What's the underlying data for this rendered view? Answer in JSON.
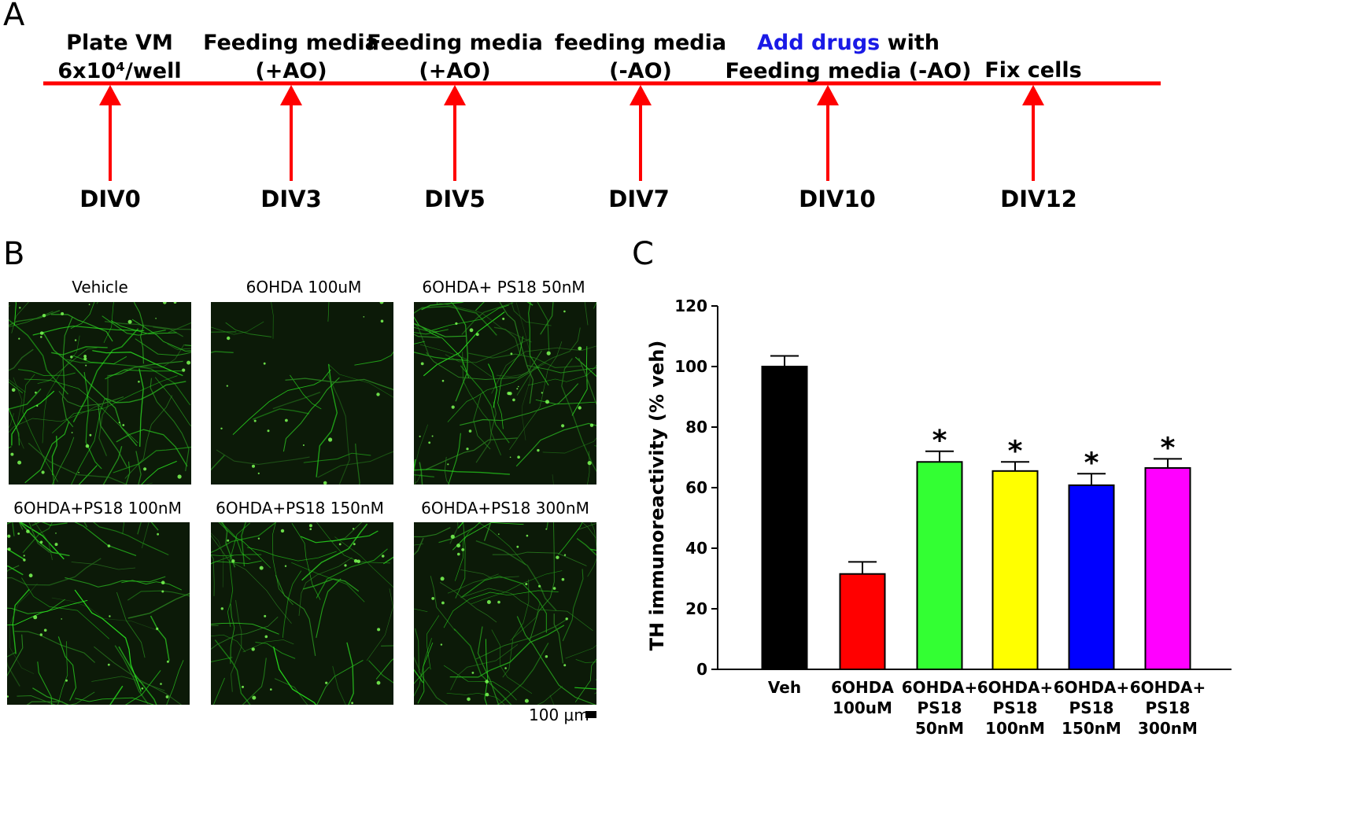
{
  "panel_a": {
    "letter": "A",
    "events": [
      {
        "lines": [
          "Plate VM",
          "6x10⁴/well"
        ],
        "day": "DIV0"
      },
      {
        "lines": [
          "Feeding media",
          "(+AO)"
        ],
        "day": "DIV3"
      },
      {
        "lines": [
          "Feeding media",
          "(+AO)"
        ],
        "day": "DIV5"
      },
      {
        "lines": [
          "feeding media",
          "(-AO)"
        ],
        "day": "DIV7"
      },
      {
        "accent": "Add drugs",
        "rest": " with",
        "line2": "Feeding media (-AO)",
        "day": "DIV10"
      },
      {
        "lines": [
          "Fix cells"
        ],
        "day": "DIV12"
      }
    ],
    "line_color": "#ff0000",
    "accent_color": "#1a1ae6"
  },
  "panel_b": {
    "letter": "B",
    "images": [
      {
        "title": "Vehicle",
        "density": 1.0
      },
      {
        "title": "6OHDA 100uM",
        "density": 0.3
      },
      {
        "title": "6OHDA+ PS18 50nM",
        "density": 0.9
      },
      {
        "title": "6OHDA+PS18 100nM",
        "density": 0.75
      },
      {
        "title": "6OHDA+PS18 150nM",
        "density": 0.7
      },
      {
        "title": "6OHDA+PS18 300nM",
        "density": 0.85
      }
    ],
    "scale_bar": "100 μm"
  },
  "panel_c": {
    "letter": "C"
  },
  "chart_data": {
    "type": "bar",
    "categories": [
      [
        "Veh"
      ],
      [
        "6OHDA",
        "100uM"
      ],
      [
        "6OHDA+",
        "PS18",
        "50nM"
      ],
      [
        "6OHDA+",
        "PS18",
        "100nM"
      ],
      [
        "6OHDA+",
        "PS18",
        "150nM"
      ],
      [
        "6OHDA+",
        "PS18",
        "300nM"
      ]
    ],
    "values": [
      100,
      31.5,
      68.5,
      65.5,
      60.8,
      66.5
    ],
    "errors": [
      3.5,
      4,
      3.5,
      3,
      3.8,
      3
    ],
    "significant": [
      false,
      false,
      true,
      true,
      true,
      true
    ],
    "significance_marker": "*",
    "colors": [
      "#000000",
      "#ff0000",
      "#33ff33",
      "#ffff00",
      "#0000ff",
      "#ff00ff"
    ],
    "ylabel": "TH immunoreactivity (% veh)",
    "xlabel": "",
    "ylim": [
      0,
      120
    ],
    "yticks": [
      0,
      20,
      40,
      60,
      80,
      100,
      120
    ],
    "grid": false
  }
}
